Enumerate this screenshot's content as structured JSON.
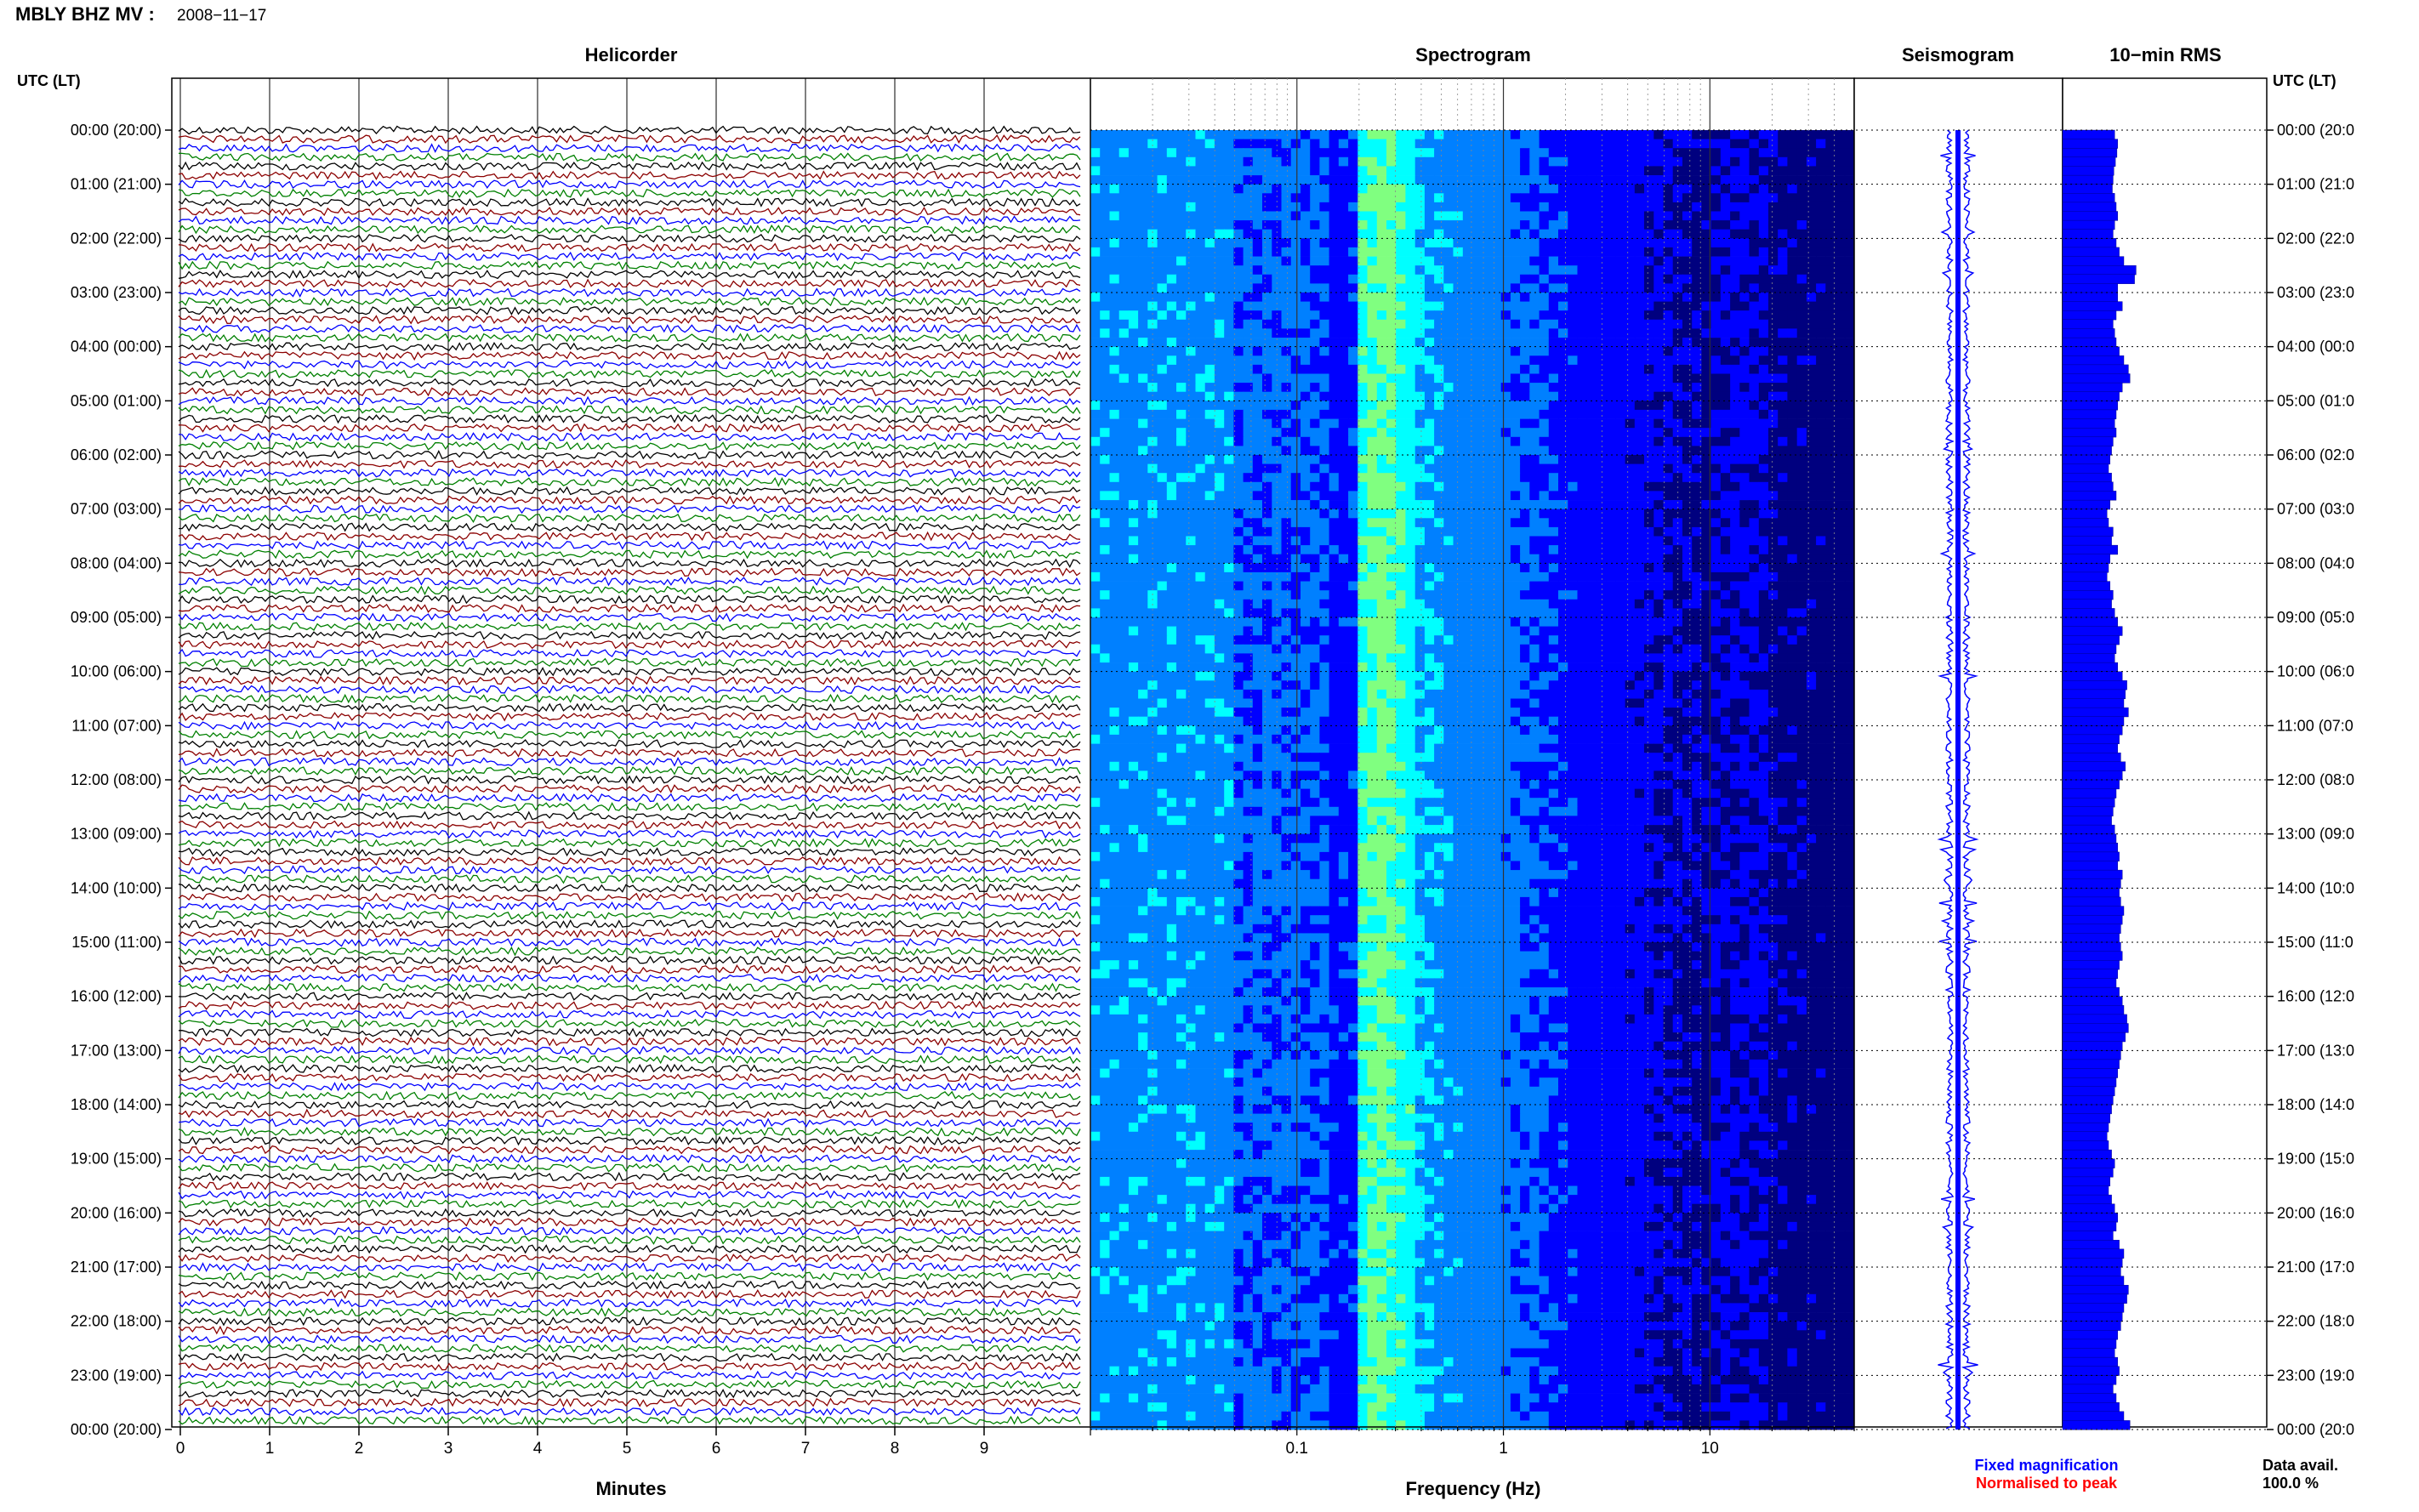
{
  "header": {
    "station": "MBLY BHZ MV :",
    "date": "2008−11−17"
  },
  "panels": {
    "helicorder": "Helicorder",
    "spectrogram": "Spectrogram",
    "seismogram": "Seismogram",
    "rms": "10−min RMS"
  },
  "time_axis_label": "UTC (LT)",
  "time_labels": [
    "00:00 (20:00)",
    "01:00 (21:00)",
    "02:00 (22:00)",
    "03:00 (23:00)",
    "04:00 (00:00)",
    "05:00 (01:00)",
    "06:00 (02:00)",
    "07:00 (03:00)",
    "08:00 (04:00)",
    "09:00 (05:00)",
    "10:00 (06:00)",
    "11:00 (07:00)",
    "12:00 (08:00)",
    "13:00 (09:00)",
    "14:00 (10:00)",
    "15:00 (11:00)",
    "16:00 (12:00)",
    "17:00 (13:00)",
    "18:00 (14:00)",
    "19:00 (15:00)",
    "20:00 (16:00)",
    "21:00 (17:00)",
    "22:00 (18:00)",
    "23:00 (19:00)",
    "00:00 (20:00)"
  ],
  "right_time_labels": [
    "00:00 (20:0",
    "01:00 (21:0",
    "02:00 (22:0",
    "03:00 (23:0",
    "04:00 (00:0",
    "05:00 (01:0",
    "06:00 (02:0",
    "07:00 (03:0",
    "08:00 (04:0",
    "09:00 (05:0",
    "10:00 (06:0",
    "11:00 (07:0",
    "12:00 (08:0",
    "13:00 (09:0",
    "14:00 (10:0",
    "15:00 (11:0",
    "16:00 (12:0",
    "17:00 (13:0",
    "18:00 (14:0",
    "19:00 (15:0",
    "20:00 (16:0",
    "21:00 (17:0",
    "22:00 (18:0",
    "23:00 (19:0",
    "00:00 (20:0"
  ],
  "legend": {
    "fixed": "Fixed magnification",
    "fixed_color": "#0000ff",
    "normalised": "Normalised to peak",
    "normalised_color": "#ff0000"
  },
  "data_avail": {
    "label": "Data avail.",
    "value": "100.0 %"
  },
  "chart_data": [
    {
      "type": "line",
      "title": "Helicorder",
      "xlabel": "Minutes",
      "x_ticks": [
        "0",
        "1",
        "2",
        "3",
        "4",
        "5",
        "6",
        "7",
        "8",
        "9"
      ],
      "xlim": [
        0,
        10
      ],
      "trace_colors": [
        "#000000",
        "#8b0000",
        "#0000ff",
        "#008000"
      ],
      "traces_per_hour": 6,
      "hours": 24
    },
    {
      "type": "heatmap",
      "title": "Spectrogram",
      "xlabel": "Frequency (Hz)",
      "x_scale": "log",
      "x_ticks": [
        "0.1",
        "1",
        "10"
      ],
      "xlim": [
        0.01,
        50
      ],
      "colormap": [
        "#00007f",
        "#0000ff",
        "#0080ff",
        "#00ffff",
        "#80ff80",
        "#ffff00"
      ],
      "peak_band_hz": [
        0.2,
        0.3
      ],
      "grid": "dotted"
    },
    {
      "type": "line",
      "title": "Seismogram",
      "color": "#0000ff",
      "hours": 24
    },
    {
      "type": "bar",
      "title": "10−min RMS",
      "orientation": "horizontal",
      "color": "#0000ff",
      "interval_minutes": 10,
      "values": [
        0.68,
        0.72,
        0.71,
        0.69,
        0.67,
        0.66,
        0.65,
        0.68,
        0.7,
        0.72,
        0.68,
        0.66,
        0.7,
        0.74,
        0.8,
        0.96,
        0.94,
        0.72,
        0.72,
        0.78,
        0.7,
        0.66,
        0.68,
        0.7,
        0.74,
        0.8,
        0.86,
        0.88,
        0.78,
        0.74,
        0.72,
        0.7,
        0.68,
        0.7,
        0.66,
        0.64,
        0.62,
        0.6,
        0.64,
        0.66,
        0.7,
        0.62,
        0.58,
        0.6,
        0.66,
        0.64,
        0.72,
        0.62,
        0.6,
        0.58,
        0.62,
        0.66,
        0.64,
        0.68,
        0.72,
        0.78,
        0.74,
        0.7,
        0.68,
        0.72,
        0.78,
        0.84,
        0.82,
        0.8,
        0.86,
        0.8,
        0.78,
        0.74,
        0.72,
        0.76,
        0.82,
        0.78,
        0.74,
        0.7,
        0.68,
        0.66,
        0.64,
        0.68,
        0.7,
        0.72,
        0.74,
        0.72,
        0.78,
        0.76,
        0.74,
        0.76,
        0.8,
        0.78,
        0.76,
        0.74,
        0.76,
        0.78,
        0.74,
        0.72,
        0.7,
        0.74,
        0.78,
        0.8,
        0.84,
        0.86,
        0.82,
        0.78,
        0.76,
        0.74,
        0.72,
        0.7,
        0.68,
        0.66,
        0.64,
        0.62,
        0.6,
        0.58,
        0.6,
        0.64,
        0.68,
        0.66,
        0.62,
        0.6,
        0.64,
        0.68,
        0.72,
        0.7,
        0.66,
        0.74,
        0.8,
        0.78,
        0.76,
        0.8,
        0.86,
        0.84,
        0.8,
        0.78,
        0.76,
        0.72,
        0.7,
        0.68,
        0.72,
        0.74,
        0.7,
        0.66,
        0.7,
        0.74,
        0.8,
        0.88
      ]
    }
  ]
}
